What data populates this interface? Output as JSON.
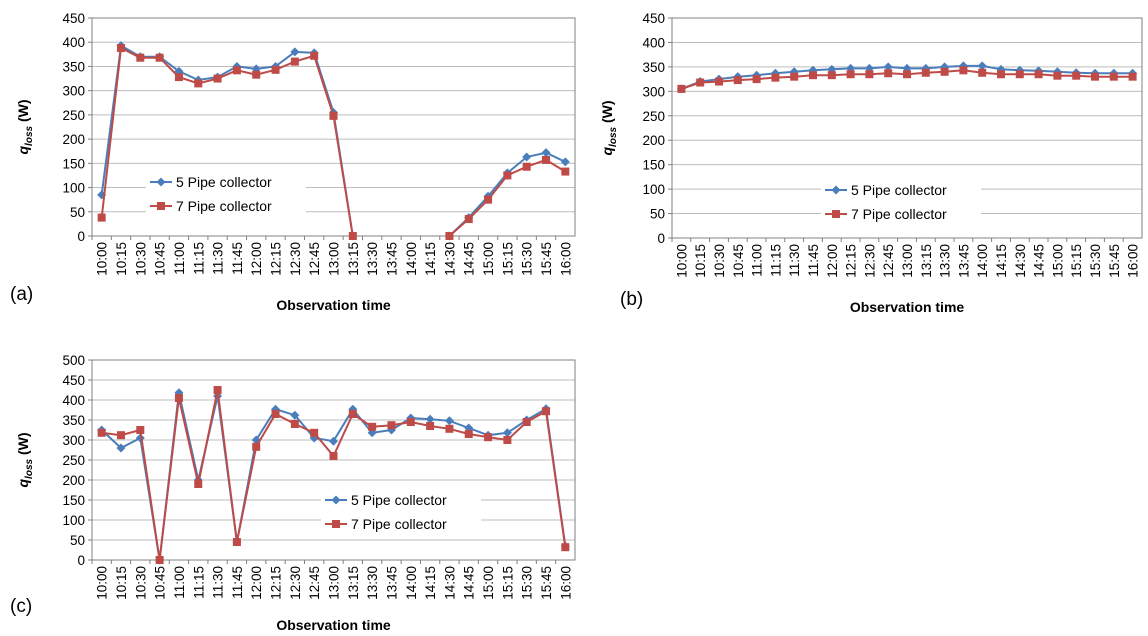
{
  "chart_data": [
    {
      "type": "line",
      "panel_label": "(a)",
      "ylabel": "q",
      "ylabel_sub": "loss",
      "ylabel_unit": "(W)",
      "xlabel": "Observation time",
      "categories": [
        "10:00",
        "10:15",
        "10:30",
        "10:45",
        "11:00",
        "11:15",
        "11:30",
        "11:45",
        "12:00",
        "12:15",
        "12:30",
        "12:45",
        "13:00",
        "13:15",
        "13:30",
        "13:45",
        "14:00",
        "14:15",
        "14:30",
        "14:45",
        "15:00",
        "15:15",
        "15:30",
        "15:45",
        "16:00"
      ],
      "series": [
        {
          "name": "5 Pipe collector",
          "color": "#4a7ebb",
          "marker": "diamond",
          "values": [
            85,
            393,
            370,
            370,
            340,
            322,
            328,
            350,
            345,
            350,
            380,
            378,
            255,
            0,
            null,
            null,
            null,
            null,
            0,
            38,
            82,
            130,
            163,
            172,
            153
          ]
        },
        {
          "name": "7 Pipe collector",
          "color": "#be4b48",
          "marker": "square",
          "values": [
            38,
            388,
            368,
            368,
            328,
            315,
            325,
            342,
            333,
            343,
            360,
            372,
            248,
            0,
            null,
            null,
            null,
            null,
            0,
            35,
            75,
            125,
            143,
            157,
            133
          ]
        }
      ],
      "ylim": [
        0,
        450
      ],
      "yticks": [
        0,
        50,
        100,
        150,
        200,
        250,
        300,
        350,
        400,
        450
      ],
      "grid": true
    },
    {
      "type": "line",
      "panel_label": "(b)",
      "ylabel": "q",
      "ylabel_sub": "loss",
      "ylabel_unit": "(W)",
      "xlabel": "Observation time",
      "categories": [
        "10:00",
        "10:15",
        "10:30",
        "10:45",
        "11:00",
        "11:15",
        "11:30",
        "11:45",
        "12:00",
        "12:15",
        "12:30",
        "12:45",
        "13:00",
        "13:15",
        "13:30",
        "13:45",
        "14:00",
        "14:15",
        "14:30",
        "14:45",
        "15:00",
        "15:15",
        "15:30",
        "15:45",
        "16:00"
      ],
      "series": [
        {
          "name": "5 Pipe collector",
          "color": "#4a7ebb",
          "marker": "diamond",
          "values": [
            305,
            320,
            325,
            330,
            333,
            337,
            340,
            343,
            345,
            347,
            347,
            350,
            347,
            347,
            350,
            352,
            352,
            345,
            343,
            342,
            340,
            338,
            337,
            337,
            337
          ]
        },
        {
          "name": "7 Pipe collector",
          "color": "#be4b48",
          "marker": "square",
          "values": [
            305,
            318,
            320,
            323,
            325,
            328,
            330,
            333,
            333,
            335,
            335,
            337,
            335,
            338,
            340,
            343,
            338,
            335,
            335,
            335,
            332,
            332,
            330,
            330,
            330
          ]
        }
      ],
      "ylim": [
        0,
        450
      ],
      "yticks": [
        0,
        50,
        100,
        150,
        200,
        250,
        300,
        350,
        400,
        450
      ],
      "grid": true
    },
    {
      "type": "line",
      "panel_label": "(c)",
      "ylabel": "q",
      "ylabel_sub": "loss",
      "ylabel_unit": "(W)",
      "xlabel": "Observation time",
      "categories": [
        "10:00",
        "10:15",
        "10:30",
        "10:45",
        "11:00",
        "11:15",
        "11:30",
        "11:45",
        "12:00",
        "12:15",
        "12:30",
        "12:45",
        "13:00",
        "13:15",
        "13:30",
        "13:45",
        "14:00",
        "14:15",
        "14:30",
        "14:45",
        "15:00",
        "15:15",
        "15:30",
        "15:45",
        "16:00"
      ],
      "series": [
        {
          "name": "5 Pipe collector",
          "color": "#4a7ebb",
          "marker": "diamond",
          "values": [
            325,
            280,
            305,
            0,
            418,
            200,
            410,
            45,
            300,
            377,
            362,
            305,
            297,
            377,
            318,
            325,
            355,
            352,
            348,
            330,
            312,
            318,
            350,
            378,
            35
          ]
        },
        {
          "name": "7 Pipe collector",
          "color": "#be4b48",
          "marker": "square",
          "values": [
            318,
            312,
            325,
            0,
            405,
            190,
            425,
            45,
            283,
            365,
            340,
            318,
            260,
            365,
            333,
            337,
            345,
            335,
            328,
            315,
            307,
            300,
            345,
            372,
            32
          ]
        }
      ],
      "ylim": [
        0,
        500
      ],
      "yticks": [
        0,
        50,
        100,
        150,
        200,
        250,
        300,
        350,
        400,
        450,
        500
      ],
      "grid": true
    }
  ]
}
